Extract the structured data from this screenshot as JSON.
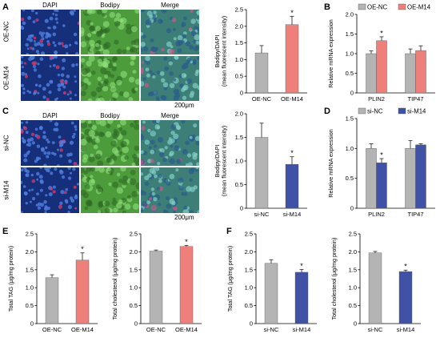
{
  "panels": {
    "A": {
      "letter": "A",
      "columns": [
        "DAPI",
        "Bodipy",
        "Merge"
      ],
      "rows": [
        "OE-NC",
        "OE-M14"
      ],
      "scale": "200μm"
    },
    "C": {
      "letter": "C",
      "columns": [
        "DAPI",
        "Bodipy",
        "Merge"
      ],
      "rows": [
        "si-NC",
        "si-M14"
      ],
      "scale": "200μm"
    },
    "B": {
      "letter": "B"
    },
    "D": {
      "letter": "D"
    },
    "E": {
      "letter": "E"
    },
    "F": {
      "letter": "F"
    }
  },
  "colors": {
    "gray": "#b4b4b4",
    "red": "#ef7f7b",
    "blue": "#3f52a5",
    "dapi_bg": "#162f7a",
    "bodipy_bg": "#4c9c3c",
    "merge_bg": "#3d7e77"
  },
  "chart_data": [
    {
      "id": "a-bar",
      "type": "bar",
      "ylabel": "Bodipy/DAPI\n(mean fluorescent intensity)",
      "ylim": [
        0,
        2.5
      ],
      "ticks": [
        "0",
        "0.5",
        "1.0",
        "1.5",
        "2.0",
        "2.5"
      ],
      "categories": [
        "OE-NC",
        "OE-M14"
      ],
      "values": [
        1.2,
        2.05
      ],
      "errors": [
        0.22,
        0.25
      ],
      "colors": [
        "#b4b4b4",
        "#ef7f7b"
      ],
      "sig": [
        "",
        "*"
      ]
    },
    {
      "id": "b-bar",
      "type": "bar",
      "ylabel": "Relative mRNA expression",
      "ylim": [
        0,
        2.0
      ],
      "ticks": [
        "0",
        "0.5",
        "1.0",
        "1.5",
        "2.0"
      ],
      "categories": [
        "PLIN2",
        "TIP47"
      ],
      "series": [
        {
          "name": "OE-NC",
          "values": [
            1.0,
            1.0
          ],
          "errors": [
            0.07,
            0.12
          ]
        },
        {
          "name": "OE-M14",
          "values": [
            1.33,
            1.08
          ],
          "errors": [
            0.1,
            0.12
          ]
        }
      ],
      "colors": [
        "#b4b4b4",
        "#ef7f7b"
      ],
      "sig": [
        [
          "",
          "*"
        ],
        [
          "",
          ""
        ]
      ],
      "legend": "top"
    },
    {
      "id": "c-bar",
      "type": "bar",
      "ylabel": "Bodipy/DAPI\n(mean fluorescent intensity)",
      "ylim": [
        0,
        2.0
      ],
      "ticks": [
        "0",
        "0.5",
        "1.0",
        "1.5",
        "2.0"
      ],
      "categories": [
        "si-NC",
        "si-M14"
      ],
      "values": [
        1.5,
        0.93
      ],
      "errors": [
        0.3,
        0.16
      ],
      "colors": [
        "#b4b4b4",
        "#3f52a5"
      ],
      "sig": [
        "",
        "*"
      ]
    },
    {
      "id": "d-bar",
      "type": "bar",
      "ylabel": "Relative mRNA expression",
      "ylim": [
        0,
        1.5
      ],
      "ticks": [
        "0",
        "0.5",
        "1.0",
        "1.5"
      ],
      "categories": [
        "PLIN2",
        "TIP47"
      ],
      "series": [
        {
          "name": "si-NC",
          "values": [
            1.0,
            1.0
          ],
          "errors": [
            0.08,
            0.13
          ]
        },
        {
          "name": "si-M14",
          "values": [
            0.76,
            1.06
          ],
          "errors": [
            0.07,
            0.02
          ]
        }
      ],
      "colors": [
        "#b4b4b4",
        "#3f52a5"
      ],
      "sig": [
        [
          "",
          "*"
        ],
        [
          "",
          ""
        ]
      ],
      "legend": "top"
    },
    {
      "id": "e1-bar",
      "type": "bar",
      "ylabel": "Total TAG (μg/mg protein)",
      "ylim": [
        0,
        2.5
      ],
      "ticks": [
        "0",
        "0.5",
        "1.0",
        "1.5",
        "2.0",
        "2.5"
      ],
      "categories": [
        "OE-NC",
        "OE-M14"
      ],
      "values": [
        1.28,
        1.77
      ],
      "errors": [
        0.08,
        0.2
      ],
      "colors": [
        "#b4b4b4",
        "#ef7f7b"
      ],
      "sig": [
        "",
        "*"
      ]
    },
    {
      "id": "e2-bar",
      "type": "bar",
      "ylabel": "Total cholesterol (μg/mg protein)",
      "ylim": [
        0,
        2.5
      ],
      "ticks": [
        "0",
        "0.5",
        "1.0",
        "1.5",
        "2.0",
        "2.5"
      ],
      "categories": [
        "OE-NC",
        "OE-M14"
      ],
      "values": [
        2.02,
        2.15
      ],
      "errors": [
        0.03,
        0.03
      ],
      "colors": [
        "#b4b4b4",
        "#ef7f7b"
      ],
      "sig": [
        "",
        "*"
      ]
    },
    {
      "id": "f1-bar",
      "type": "bar",
      "ylabel": "Total TAG (μg/mg protein)",
      "ylim": [
        0,
        2.5
      ],
      "ticks": [
        "0",
        "0.5",
        "1.0",
        "1.5",
        "2.0",
        "2.5"
      ],
      "categories": [
        "si-NC",
        "si-M14"
      ],
      "values": [
        1.68,
        1.43
      ],
      "errors": [
        0.1,
        0.08
      ],
      "colors": [
        "#b4b4b4",
        "#3f52a5"
      ],
      "sig": [
        "",
        "*"
      ]
    },
    {
      "id": "f2-bar",
      "type": "bar",
      "ylabel": "Total cholesterol (μg/mg protein)",
      "ylim": [
        0,
        2.5
      ],
      "ticks": [
        "0",
        "0.5",
        "1.0",
        "1.5",
        "2.0",
        "2.5"
      ],
      "categories": [
        "si-NC",
        "si-M14"
      ],
      "values": [
        1.97,
        1.45
      ],
      "errors": [
        0.04,
        0.04
      ],
      "colors": [
        "#b4b4b4",
        "#3f52a5"
      ],
      "sig": [
        "",
        "*"
      ]
    }
  ]
}
